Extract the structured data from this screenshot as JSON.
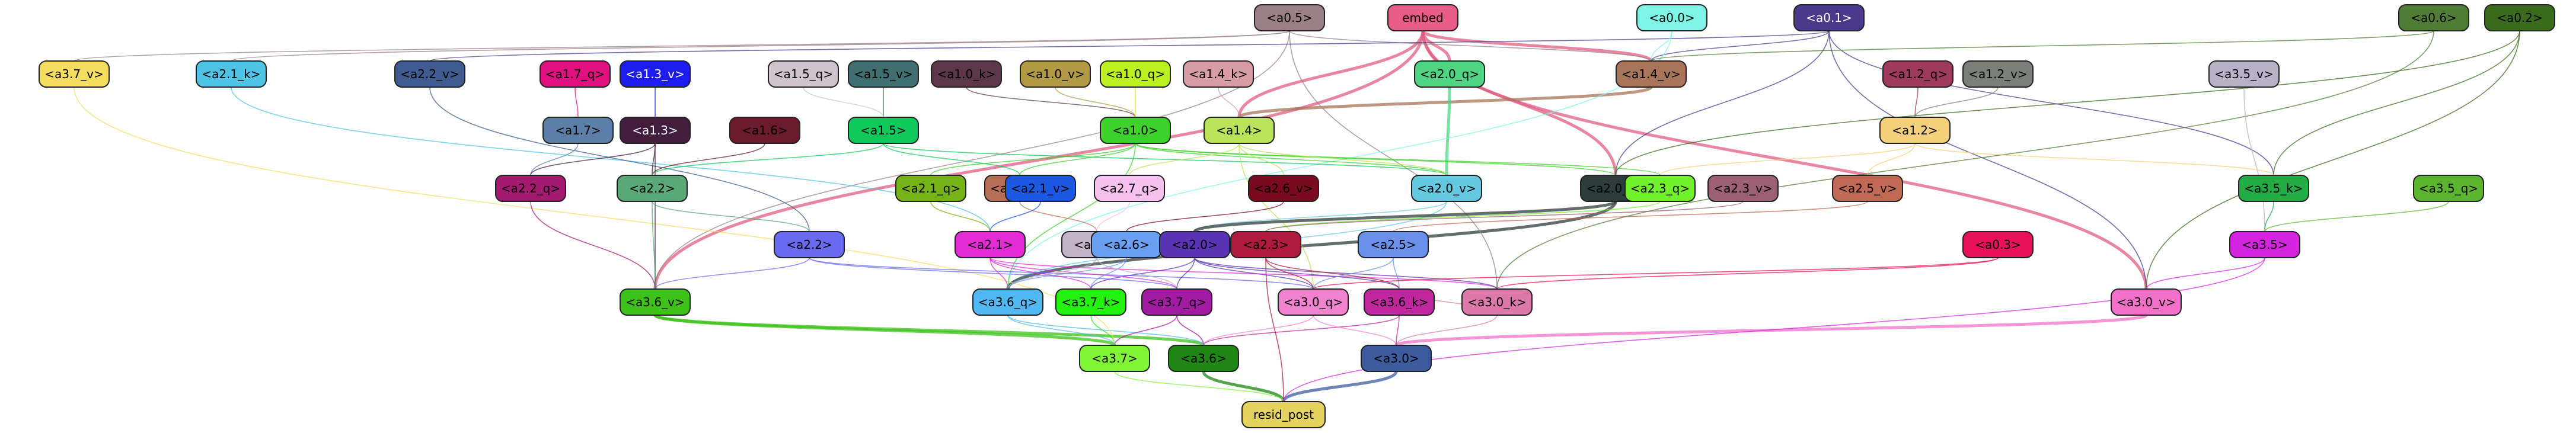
{
  "graph": {
    "nodes": [
      {
        "id": "a05",
        "label": "<a0.5>",
        "fill": "#9a7f86",
        "text": "#000000"
      },
      {
        "id": "embed",
        "label": "embed",
        "fill": "#e85c88",
        "text": "#000000"
      },
      {
        "id": "a00",
        "label": "<a0.0>",
        "fill": "#7ff5e8",
        "text": "#000000"
      },
      {
        "id": "a01",
        "label": "<a0.1>",
        "fill": "#4b3a8c",
        "text": "#ffffff"
      },
      {
        "id": "a06",
        "label": "<a0.6>",
        "fill": "#4f7d35",
        "text": "#000000"
      },
      {
        "id": "a02",
        "label": "<a0.2>",
        "fill": "#3a6b1c",
        "text": "#000000"
      },
      {
        "id": "a37v",
        "label": "<a3.7_v>",
        "fill": "#f5dd60",
        "text": "#000000"
      },
      {
        "id": "a21k",
        "label": "<a2.1_k>",
        "fill": "#4fc3e3",
        "text": "#000000"
      },
      {
        "id": "a22v",
        "label": "<a2.2_v>",
        "fill": "#3f5b8f",
        "text": "#000000"
      },
      {
        "id": "a17q",
        "label": "<a1.7_q>",
        "fill": "#e0117f",
        "text": "#000000"
      },
      {
        "id": "a13v",
        "label": "<a1.3_v>",
        "fill": "#1c1cef",
        "text": "#ffffff"
      },
      {
        "id": "a15q",
        "label": "<a1.5_q>",
        "fill": "#cfc4cd",
        "text": "#000000"
      },
      {
        "id": "a15v",
        "label": "<a1.5_v>",
        "fill": "#3f6f70",
        "text": "#000000"
      },
      {
        "id": "a10k",
        "label": "<a1.0_k>",
        "fill": "#5c3749",
        "text": "#000000"
      },
      {
        "id": "a10v",
        "label": "<a1.0_v>",
        "fill": "#b29a44",
        "text": "#000000"
      },
      {
        "id": "a10q",
        "label": "<a1.0_q>",
        "fill": "#baf11f",
        "text": "#000000"
      },
      {
        "id": "a14k",
        "label": "<a1.4_k>",
        "fill": "#d89ca6",
        "text": "#000000"
      },
      {
        "id": "a20q",
        "label": "<a2.0_q>",
        "fill": "#4ed482",
        "text": "#000000"
      },
      {
        "id": "a14v",
        "label": "<a1.4_v>",
        "fill": "#a8745a",
        "text": "#000000"
      },
      {
        "id": "a12q",
        "label": "<a1.2_q>",
        "fill": "#9e3a5c",
        "text": "#000000"
      },
      {
        "id": "a12v",
        "label": "<a1.2_v>",
        "fill": "#7a8078",
        "text": "#000000"
      },
      {
        "id": "a35v",
        "label": "<a3.5_v>",
        "fill": "#b8b2c8",
        "text": "#000000"
      },
      {
        "id": "a17",
        "label": "<a1.7>",
        "fill": "#5d7ea8",
        "text": "#000000"
      },
      {
        "id": "a13",
        "label": "<a1.3>",
        "fill": "#421d3d",
        "text": "#ffffff"
      },
      {
        "id": "a16",
        "label": "<a1.6>",
        "fill": "#6c1a2e",
        "text": "#000000"
      },
      {
        "id": "a15",
        "label": "<a1.5>",
        "fill": "#0fc95a",
        "text": "#000000"
      },
      {
        "id": "a10",
        "label": "<a1.0>",
        "fill": "#3dd22a",
        "text": "#000000"
      },
      {
        "id": "a14",
        "label": "<a1.4>",
        "fill": "#b8e35a",
        "text": "#000000"
      },
      {
        "id": "a12",
        "label": "<a1.2>",
        "fill": "#f5d07c",
        "text": "#000000"
      },
      {
        "id": "a22q",
        "label": "<a2.2_q>",
        "fill": "#a41a70",
        "text": "#000000"
      },
      {
        "id": "a22",
        "label": "<a2.2>",
        "fill": "#5aa877",
        "text": "#000000"
      },
      {
        "id": "a21q",
        "label": "<a2.1_q>",
        "fill": "#76b317",
        "text": "#000000"
      },
      {
        "id": "a27v",
        "label": "<a2.7_v>",
        "fill": "#b86f58",
        "text": "#000000"
      },
      {
        "id": "a21v",
        "label": "<a2.1_v>",
        "fill": "#1d58e3",
        "text": "#000000"
      },
      {
        "id": "a27q",
        "label": "<a2.7_q>",
        "fill": "#f6c1ee",
        "text": "#000000"
      },
      {
        "id": "a26v",
        "label": "<a2.6_v>",
        "fill": "#7a0a1e",
        "text": "#000000"
      },
      {
        "id": "a20v",
        "label": "<a2.0_v>",
        "fill": "#64c9e0",
        "text": "#000000"
      },
      {
        "id": "a20k",
        "label": "<a2.0_k>",
        "fill": "#2f3c3c",
        "text": "#000000"
      },
      {
        "id": "a23q",
        "label": "<a2.3_q>",
        "fill": "#6ff02a",
        "text": "#000000"
      },
      {
        "id": "a23v",
        "label": "<a2.3_v>",
        "fill": "#9b6073",
        "text": "#000000"
      },
      {
        "id": "a25v",
        "label": "<a2.5_v>",
        "fill": "#c06a55",
        "text": "#000000"
      },
      {
        "id": "a35k",
        "label": "<a3.5_k>",
        "fill": "#22ac44",
        "text": "#000000"
      },
      {
        "id": "a35q",
        "label": "<a3.5_q>",
        "fill": "#5bb52e",
        "text": "#000000"
      },
      {
        "id": "a22b",
        "label": "<a2.2>",
        "fill": "#6a6af0",
        "text": "#000000"
      },
      {
        "id": "a21",
        "label": "<a2.1>",
        "fill": "#e22ad5",
        "text": "#000000"
      },
      {
        "id": "a27",
        "label": "<a2.7>",
        "fill": "#c2b4c6",
        "text": "#000000"
      },
      {
        "id": "a26",
        "label": "<a2.6>",
        "fill": "#6a9ef0",
        "text": "#000000"
      },
      {
        "id": "a20",
        "label": "<a2.0>",
        "fill": "#5a34b4",
        "text": "#000000"
      },
      {
        "id": "a23",
        "label": "<a2.3>",
        "fill": "#b01a3e",
        "text": "#000000"
      },
      {
        "id": "a25",
        "label": "<a2.5>",
        "fill": "#6a90ea",
        "text": "#000000"
      },
      {
        "id": "a03",
        "label": "<a0.3>",
        "fill": "#e8115a",
        "text": "#000000"
      },
      {
        "id": "a35",
        "label": "<a3.5>",
        "fill": "#d424e0",
        "text": "#000000"
      },
      {
        "id": "a36v",
        "label": "<a3.6_v>",
        "fill": "#3cc219",
        "text": "#000000"
      },
      {
        "id": "a36q",
        "label": "<a3.6_q>",
        "fill": "#50b8f2",
        "text": "#000000"
      },
      {
        "id": "a37k",
        "label": "<a3.7_k>",
        "fill": "#23f20f",
        "text": "#000000"
      },
      {
        "id": "a37q",
        "label": "<a3.7_q>",
        "fill": "#a31aa3",
        "text": "#000000"
      },
      {
        "id": "a30q",
        "label": "<a3.0_q>",
        "fill": "#f082cf",
        "text": "#000000"
      },
      {
        "id": "a36k",
        "label": "<a3.6_k>",
        "fill": "#c0269e",
        "text": "#000000"
      },
      {
        "id": "a30k",
        "label": "<a3.0_k>",
        "fill": "#dc78aa",
        "text": "#000000"
      },
      {
        "id": "a30v",
        "label": "<a3.0_v>",
        "fill": "#f270c8",
        "text": "#000000"
      },
      {
        "id": "a37",
        "label": "<a3.7>",
        "fill": "#7ff535",
        "text": "#000000"
      },
      {
        "id": "a36",
        "label": "<a3.6>",
        "fill": "#1f8614",
        "text": "#000000"
      },
      {
        "id": "a30",
        "label": "<a3.0>",
        "fill": "#3e5b9e",
        "text": "#000000"
      },
      {
        "id": "resid",
        "label": "resid_post",
        "fill": "#e4d35e",
        "text": "#000000"
      }
    ],
    "edges": [
      {
        "from": "embed",
        "to": "a14v",
        "color": "#e05c80"
      },
      {
        "from": "embed",
        "to": "a20k",
        "color": "#e05c80"
      },
      {
        "from": "embed",
        "to": "a36v",
        "color": "#e05c80"
      },
      {
        "from": "embed",
        "to": "a30v",
        "color": "#e05c80"
      },
      {
        "from": "embed",
        "to": "a20q",
        "color": "#e05c80"
      },
      {
        "from": "embed",
        "to": "a14",
        "color": "#e05c80"
      },
      {
        "from": "a14v",
        "to": "a14",
        "color": "#a8745a"
      },
      {
        "from": "a20q",
        "to": "a20v",
        "color": "#4ed482"
      },
      {
        "from": "a20v",
        "to": "a36q",
        "color": "#64c9e0"
      },
      {
        "from": "a20k",
        "to": "a36q",
        "color": "#2f3c3c"
      },
      {
        "from": "a36v",
        "to": "a36",
        "color": "#3cc219"
      },
      {
        "from": "a36q",
        "to": "a36",
        "color": "#50b8f2"
      },
      {
        "from": "a36k",
        "to": "a36",
        "color": "#c0269e"
      },
      {
        "from": "a30v",
        "to": "a30",
        "color": "#f270c8"
      },
      {
        "from": "a30q",
        "to": "a30",
        "color": "#f082cf"
      },
      {
        "from": "a30k",
        "to": "a30",
        "color": "#dc78aa"
      },
      {
        "from": "a36",
        "to": "resid",
        "color": "#1f8614"
      },
      {
        "from": "a30",
        "to": "resid",
        "color": "#3e5b9e"
      },
      {
        "from": "a37",
        "to": "resid",
        "color": "#7ff535"
      },
      {
        "from": "a37k",
        "to": "a37",
        "color": "#23f20f"
      },
      {
        "from": "a37q",
        "to": "a37",
        "color": "#a31aa3"
      },
      {
        "from": "a05",
        "to": "a14v",
        "color": "#9a7f86"
      },
      {
        "from": "a05",
        "to": "a36v",
        "color": "#9a7f86"
      },
      {
        "from": "a05",
        "to": "a37v",
        "color": "#9a7f86"
      },
      {
        "from": "a05",
        "to": "a21k",
        "color": "#9a7f86"
      },
      {
        "from": "a05",
        "to": "a30k",
        "color": "#9a7f86"
      },
      {
        "from": "a01",
        "to": "a14v",
        "color": "#4b3a8c"
      },
      {
        "from": "a01",
        "to": "a20k",
        "color": "#4b3a8c"
      },
      {
        "from": "a01",
        "to": "a35k",
        "color": "#4b3a8c"
      },
      {
        "from": "a01",
        "to": "a30v",
        "color": "#4b3a8c"
      },
      {
        "from": "a01",
        "to": "a22v",
        "color": "#4b3a8c"
      },
      {
        "from": "a00",
        "to": "a14v",
        "color": "#7ff5e8"
      },
      {
        "from": "a00",
        "to": "a36q",
        "color": "#7ff5e8"
      },
      {
        "from": "a06",
        "to": "a14v",
        "color": "#4f7d35"
      },
      {
        "from": "a06",
        "to": "a30k",
        "color": "#4f7d35"
      },
      {
        "from": "a02",
        "to": "a35k",
        "color": "#3a6b1c"
      },
      {
        "from": "a02",
        "to": "a30v",
        "color": "#3a6b1c"
      },
      {
        "from": "a02",
        "to": "a20k",
        "color": "#3a6b1c"
      },
      {
        "from": "a37v",
        "to": "a37",
        "color": "#f5dd60"
      },
      {
        "from": "a21k",
        "to": "a21",
        "color": "#4fc3e3"
      },
      {
        "from": "a22v",
        "to": "a22b",
        "color": "#3f5b8f"
      },
      {
        "from": "a17q",
        "to": "a17",
        "color": "#e0117f"
      },
      {
        "from": "a13v",
        "to": "a13",
        "color": "#1c1cef"
      },
      {
        "from": "a15v",
        "to": "a15",
        "color": "#3f6f70"
      },
      {
        "from": "a15q",
        "to": "a15",
        "color": "#cfc4cd"
      },
      {
        "from": "a10k",
        "to": "a10",
        "color": "#5c3749"
      },
      {
        "from": "a10v",
        "to": "a10",
        "color": "#b29a44"
      },
      {
        "from": "a10q",
        "to": "a10",
        "color": "#baf11f"
      },
      {
        "from": "a14k",
        "to": "a14",
        "color": "#d89ca6"
      },
      {
        "from": "a12q",
        "to": "a12",
        "color": "#9e3a5c"
      },
      {
        "from": "a12v",
        "to": "a12",
        "color": "#7a8078"
      },
      {
        "from": "a35v",
        "to": "a35",
        "color": "#b8b2c8"
      },
      {
        "from": "a17",
        "to": "a22q",
        "color": "#5d7ea8"
      },
      {
        "from": "a13",
        "to": "a22q",
        "color": "#421d3d"
      },
      {
        "from": "a13",
        "to": "a22",
        "color": "#421d3d"
      },
      {
        "from": "a13",
        "to": "a36v",
        "color": "#421d3d"
      },
      {
        "from": "a16",
        "to": "a22",
        "color": "#6c1a2e"
      },
      {
        "from": "a15",
        "to": "a22",
        "color": "#0fc95a"
      },
      {
        "from": "a15",
        "to": "a27v",
        "color": "#0fc95a"
      },
      {
        "from": "a15",
        "to": "a20v",
        "color": "#0fc95a"
      },
      {
        "from": "a10",
        "to": "a21q",
        "color": "#3dd22a"
      },
      {
        "from": "a10",
        "to": "a27v",
        "color": "#3dd22a"
      },
      {
        "from": "a10",
        "to": "a20v",
        "color": "#3dd22a"
      },
      {
        "from": "a10",
        "to": "a20k",
        "color": "#3dd22a"
      },
      {
        "from": "a10",
        "to": "a23q",
        "color": "#3dd22a"
      },
      {
        "from": "a10",
        "to": "a36q",
        "color": "#3dd22a"
      },
      {
        "from": "a14",
        "to": "a26v",
        "color": "#b8e35a"
      },
      {
        "from": "a14",
        "to": "a20v",
        "color": "#b8e35a"
      },
      {
        "from": "a14",
        "to": "a30q",
        "color": "#b8e35a"
      },
      {
        "from": "a14",
        "to": "a27q",
        "color": "#b8e35a"
      },
      {
        "from": "a12",
        "to": "a25v",
        "color": "#f5d07c"
      },
      {
        "from": "a12",
        "to": "a23q",
        "color": "#f5d07c"
      },
      {
        "from": "a12",
        "to": "a35k",
        "color": "#f5d07c"
      },
      {
        "from": "a22q",
        "to": "a36v",
        "color": "#a41a70"
      },
      {
        "from": "a22",
        "to": "a22b",
        "color": "#5aa877"
      },
      {
        "from": "a22",
        "to": "a36v",
        "color": "#5aa877"
      },
      {
        "from": "a21q",
        "to": "a21",
        "color": "#76b317"
      },
      {
        "from": "a27v",
        "to": "a27",
        "color": "#b86f58"
      },
      {
        "from": "a21v",
        "to": "a21",
        "color": "#1d58e3"
      },
      {
        "from": "a27q",
        "to": "a27",
        "color": "#f6c1ee"
      },
      {
        "from": "a26v",
        "to": "a26",
        "color": "#7a0a1e"
      },
      {
        "from": "a20v",
        "to": "a20",
        "color": "#64c9e0"
      },
      {
        "from": "a20k",
        "to": "a20",
        "color": "#2f3c3c"
      },
      {
        "from": "a23q",
        "to": "a23",
        "color": "#6ff02a"
      },
      {
        "from": "a23v",
        "to": "a23",
        "color": "#9b6073"
      },
      {
        "from": "a25v",
        "to": "a25",
        "color": "#c06a55"
      },
      {
        "from": "a35k",
        "to": "a35",
        "color": "#22ac44"
      },
      {
        "from": "a35q",
        "to": "a35",
        "color": "#5bb52e"
      },
      {
        "from": "a22b",
        "to": "a36v",
        "color": "#6a6af0"
      },
      {
        "from": "a22b",
        "to": "a37q",
        "color": "#6a6af0"
      },
      {
        "from": "a22b",
        "to": "a30q",
        "color": "#6a6af0"
      },
      {
        "from": "a21",
        "to": "a36q",
        "color": "#e22ad5"
      },
      {
        "from": "a21",
        "to": "a37k",
        "color": "#e22ad5"
      },
      {
        "from": "a21",
        "to": "a37q",
        "color": "#e22ad5"
      },
      {
        "from": "a21",
        "to": "a30k",
        "color": "#e22ad5"
      },
      {
        "from": "a27",
        "to": "a37q",
        "color": "#c2b4c6"
      },
      {
        "from": "a27",
        "to": "a36q",
        "color": "#c2b4c6"
      },
      {
        "from": "a26",
        "to": "a37k",
        "color": "#6a9ef0"
      },
      {
        "from": "a26",
        "to": "a36q",
        "color": "#6a9ef0"
      },
      {
        "from": "a20",
        "to": "a37q",
        "color": "#5a34b4"
      },
      {
        "from": "a20",
        "to": "a30q",
        "color": "#5a34b4"
      },
      {
        "from": "a20",
        "to": "a36k",
        "color": "#5a34b4"
      },
      {
        "from": "a20",
        "to": "a30k",
        "color": "#5a34b4"
      },
      {
        "from": "a20",
        "to": "a37k",
        "color": "#5a34b4"
      },
      {
        "from": "a23",
        "to": "a30q",
        "color": "#b01a3e"
      },
      {
        "from": "a23",
        "to": "a36k",
        "color": "#b01a3e"
      },
      {
        "from": "a23",
        "to": "resid",
        "color": "#b01a3e"
      },
      {
        "from": "a25",
        "to": "a36k",
        "color": "#6a90ea"
      },
      {
        "from": "a25",
        "to": "a30q",
        "color": "#6a90ea"
      },
      {
        "from": "a03",
        "to": "a30k",
        "color": "#e8115a"
      },
      {
        "from": "a03",
        "to": "a30q",
        "color": "#e8115a"
      },
      {
        "from": "a35",
        "to": "resid",
        "color": "#d424e0"
      },
      {
        "from": "a35",
        "to": "a30v",
        "color": "#d424e0"
      },
      {
        "from": "a36v",
        "to": "a37",
        "color": "#3cc219"
      },
      {
        "from": "a36q",
        "to": "a37",
        "color": "#50b8f2"
      },
      {
        "from": "a37q",
        "to": "a36",
        "color": "#a31aa3"
      },
      {
        "from": "a30q",
        "to": "a36",
        "color": "#f082cf"
      },
      {
        "from": "a30k",
        "to": "a36k",
        "color": "#dc78aa"
      },
      {
        "from": "a36k",
        "to": "a30",
        "color": "#c0269e"
      }
    ]
  }
}
